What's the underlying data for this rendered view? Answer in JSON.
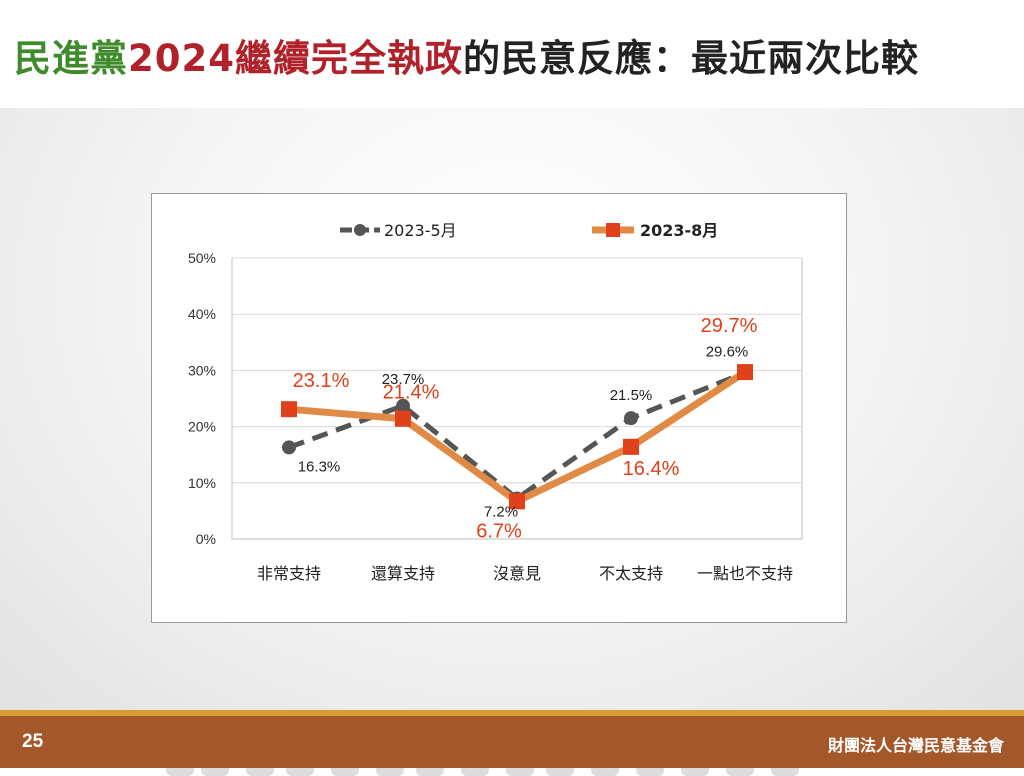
{
  "slide": {
    "title_parts": [
      "民進黨",
      "2024繼續完全執政",
      "的民意反應：最近兩次比較"
    ],
    "page_number": "25",
    "organization": "財團法人台灣民意基金會"
  },
  "colors": {
    "title_green": "#3f8a2a",
    "title_red": "#b0212a",
    "series_may": "#555555",
    "series_aug": "#e08a45",
    "series_aug_marker": "#e0401a",
    "series_aug_label": "#e0401a",
    "footer": "#a4582a",
    "footer_accent": "#d99b33"
  },
  "chart_data": {
    "type": "line",
    "categories": [
      "非常支持",
      "還算支持",
      "沒意見",
      "不太支持",
      "一點也不支持"
    ],
    "ylim": [
      0,
      50
    ],
    "y_ticks": [
      "0%",
      "10%",
      "20%",
      "30%",
      "40%",
      "50%"
    ],
    "grid": true,
    "legend": "top",
    "series": [
      {
        "name": "2023-5月",
        "values": [
          16.3,
          23.7,
          7.2,
          21.5,
          29.6
        ],
        "labels": [
          "16.3%",
          "23.7%",
          "7.2%",
          "21.5%",
          "29.6%"
        ],
        "style": "dashed",
        "marker": "circle"
      },
      {
        "name": "2023-8月",
        "values": [
          23.1,
          21.4,
          6.7,
          16.4,
          29.7
        ],
        "labels": [
          "23.1%",
          "21.4%",
          "6.7%",
          "16.4%",
          "29.7%"
        ],
        "style": "solid",
        "marker": "square"
      }
    ]
  }
}
